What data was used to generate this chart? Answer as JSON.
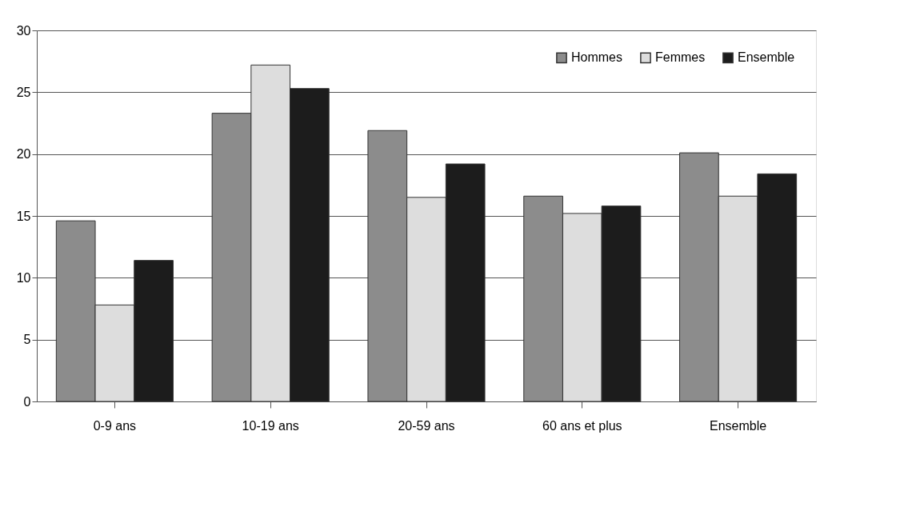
{
  "chart_data": {
    "type": "bar",
    "categories": [
      "0-9 ans",
      "10-19 ans",
      "20-59 ans",
      "60 ans et plus",
      "Ensemble"
    ],
    "series": [
      {
        "name": "Hommes",
        "color": "#8c8c8c",
        "values": [
          14.6,
          23.3,
          21.9,
          16.6,
          20.1
        ]
      },
      {
        "name": "Femmes",
        "color": "#dddddd",
        "values": [
          7.8,
          27.2,
          16.5,
          15.2,
          16.6
        ]
      },
      {
        "name": "Ensemble",
        "color": "#1c1c1c",
        "values": [
          11.4,
          25.3,
          19.2,
          15.8,
          18.4
        ]
      }
    ],
    "ylim": [
      0,
      30
    ],
    "yticks": [
      0,
      5,
      10,
      15,
      20,
      25,
      30
    ],
    "grid": "y",
    "legend": "top right"
  }
}
